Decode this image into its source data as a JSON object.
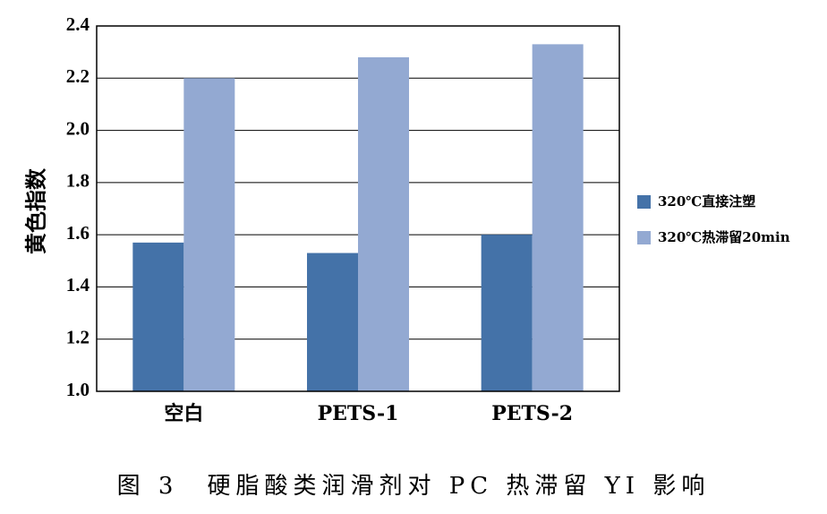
{
  "caption": "图 3　硬脂酸类润滑剂对 PC 热滞留 YI 影响",
  "colors": {
    "series1": "#4472a8",
    "series2": "#93a9d2",
    "grid": "#000000"
  },
  "chart_data": {
    "type": "bar",
    "title": "",
    "xlabel": "",
    "ylabel": "黄色指数",
    "categories": [
      "空白",
      "PETS-1",
      "PETS-2"
    ],
    "series": [
      {
        "name": "320℃直接注塑",
        "values": [
          1.57,
          1.53,
          1.6
        ]
      },
      {
        "name": "320℃热滞留20min",
        "values": [
          2.2,
          2.28,
          2.33
        ]
      }
    ],
    "ylim": [
      1.0,
      2.4
    ],
    "yticks": [
      "1.0",
      "1.2",
      "1.4",
      "1.6",
      "1.8",
      "2.0",
      "2.2",
      "2.4"
    ],
    "grid": true,
    "legend": "right"
  }
}
